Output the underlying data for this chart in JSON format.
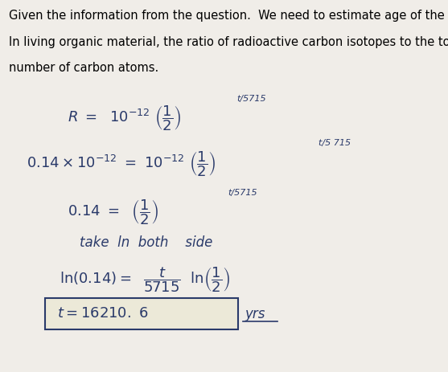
{
  "bg_color": "#f0ede8",
  "paper_color": "#ece9d8",
  "text_color": "#000000",
  "ink_color": "#2a3a6a",
  "header_text": [
    "Given the information from the question.  We need to estimate age of the fossil.",
    "In living organic material, the ratio of radioactive carbon isotopes to the total",
    "number of carbon atoms."
  ],
  "header_fontsize": 10.5,
  "box_color": "#2a3a6a",
  "figure_width": 5.57,
  "figure_height": 4.63,
  "dpi": 100
}
